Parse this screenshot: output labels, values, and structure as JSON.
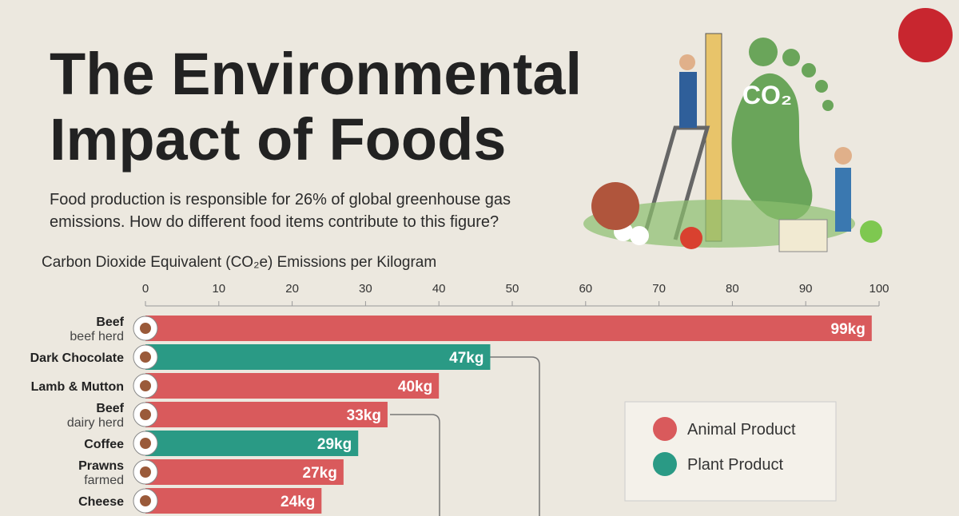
{
  "chart_data": {
    "type": "bar",
    "orientation": "horizontal",
    "title_lines": [
      "The Environmental",
      "Impact of Foods"
    ],
    "subtitle": "Food production is responsible for 26% of global greenhouse gas emissions. How do different food items contribute to this figure?",
    "x_axis_title": "Carbon Dioxide Equivalent (CO₂e) Emissions per Kilogram",
    "illustration_label": "CO₂",
    "categories": [
      "Beef",
      "Dark Chocolate",
      "Lamb & Mutton",
      "Beef",
      "Coffee",
      "Prawns",
      "Cheese"
    ],
    "category_notes": [
      "beef herd",
      null,
      null,
      "dairy herd",
      null,
      "farmed",
      null
    ],
    "series": [
      {
        "name": "Animal Product",
        "color": "#d95a5c",
        "values": [
          99,
          null,
          40,
          33,
          null,
          27,
          24
        ],
        "value_labels": [
          "99kg",
          null,
          "40kg",
          "33kg",
          null,
          "27kg",
          "24kg"
        ]
      },
      {
        "name": "Plant Product",
        "color": "#2a9a85",
        "values": [
          null,
          47,
          null,
          null,
          29,
          null,
          null
        ],
        "value_labels": [
          null,
          "47kg",
          null,
          null,
          "29kg",
          null,
          null
        ]
      }
    ],
    "xlim": [
      0,
      100
    ],
    "xticks": [
      0,
      10,
      20,
      30,
      40,
      50,
      60,
      70,
      80,
      90,
      100
    ]
  }
}
